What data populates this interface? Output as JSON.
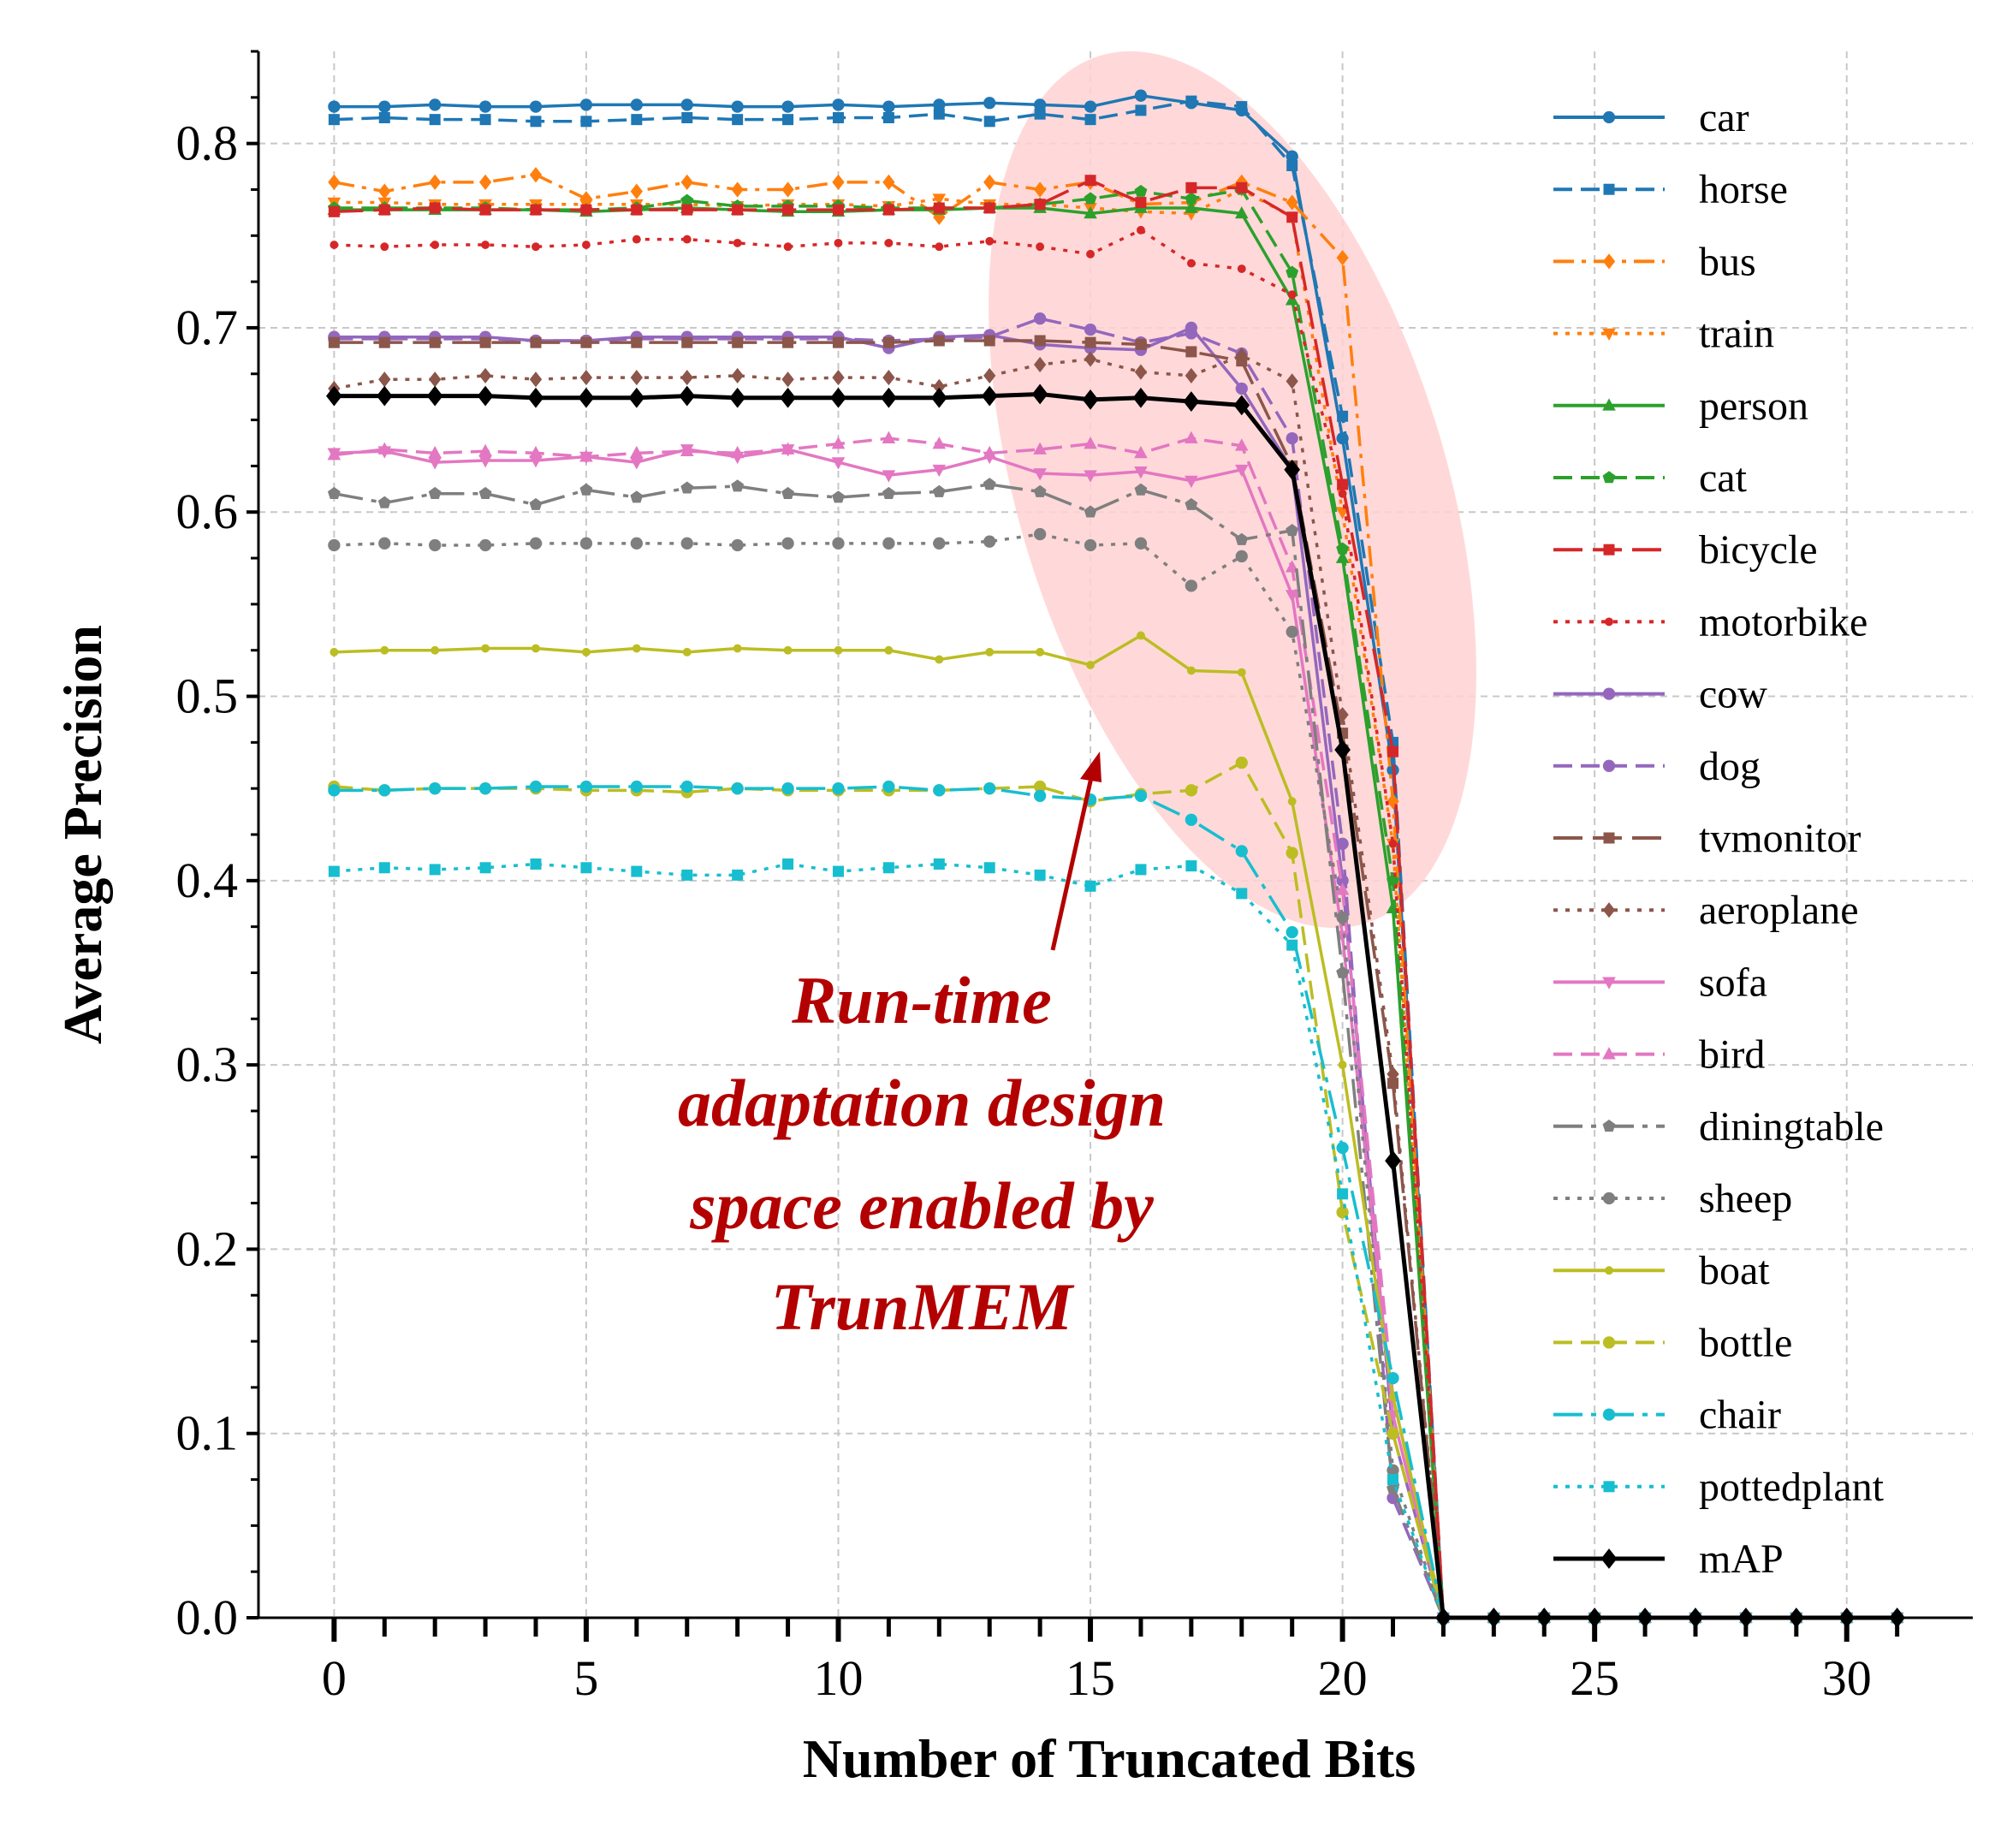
{
  "chart_data": {
    "type": "line",
    "title": "",
    "xlabel": "Number of Truncated Bits",
    "ylabel": "Average Precision",
    "xlim": [
      -1.5,
      32.5
    ],
    "ylim": [
      0.0,
      0.85
    ],
    "xticks": [
      0,
      5,
      10,
      15,
      20,
      25,
      30
    ],
    "xtick_labels": [
      "0",
      "5",
      "10",
      "15",
      "20",
      "25",
      "30"
    ],
    "yticks": [
      0.0,
      0.1,
      0.2,
      0.3,
      0.4,
      0.5,
      0.6,
      0.7,
      0.8
    ],
    "ytick_labels": [
      "0.0",
      "0.1",
      "0.2",
      "0.3",
      "0.4",
      "0.5",
      "0.6",
      "0.7",
      "0.8"
    ],
    "grid": true,
    "legend_position": "right",
    "annotation": {
      "lines": [
        "Run-time",
        "adaptation design",
        "space enabled by",
        "TrunMEM"
      ],
      "color": "#b30000",
      "highlight_color": "#ffd2d2"
    },
    "series": [
      {
        "name": "car",
        "color": "#1f77b4",
        "dash": "solid",
        "marker": "circle",
        "values": [
          0.82,
          0.82,
          0.821,
          0.82,
          0.82,
          0.821,
          0.821,
          0.821,
          0.82,
          0.82,
          0.821,
          0.82,
          0.821,
          0.822,
          0.821,
          0.82,
          0.826,
          0.822,
          0.818,
          0.793,
          0.64,
          0.46,
          0,
          0,
          0,
          0,
          0,
          0,
          0,
          0,
          0,
          0
        ]
      },
      {
        "name": "horse",
        "color": "#1f77b4",
        "dash": "dash",
        "marker": "square",
        "values": [
          0.813,
          0.814,
          0.813,
          0.813,
          0.812,
          0.812,
          0.813,
          0.814,
          0.813,
          0.813,
          0.814,
          0.814,
          0.816,
          0.812,
          0.816,
          0.813,
          0.818,
          0.823,
          0.82,
          0.788,
          0.652,
          0.475,
          0,
          0,
          0,
          0,
          0,
          0,
          0,
          0,
          0,
          0
        ]
      },
      {
        "name": "bus",
        "color": "#ff7f0e",
        "dash": "dashdot",
        "marker": "diamond",
        "values": [
          0.779,
          0.774,
          0.779,
          0.779,
          0.783,
          0.77,
          0.774,
          0.779,
          0.775,
          0.775,
          0.779,
          0.779,
          0.76,
          0.779,
          0.775,
          0.779,
          0.767,
          0.768,
          0.779,
          0.768,
          0.738,
          0.443,
          0,
          0,
          0,
          0,
          0,
          0,
          0,
          0,
          0,
          0
        ]
      },
      {
        "name": "train",
        "color": "#ff7f0e",
        "dash": "dot",
        "marker": "triangle-down",
        "values": [
          0.768,
          0.768,
          0.767,
          0.767,
          0.767,
          0.767,
          0.767,
          0.767,
          0.766,
          0.767,
          0.767,
          0.766,
          0.77,
          0.767,
          0.767,
          0.765,
          0.763,
          0.762,
          0.775,
          0.76,
          0.6,
          0.42,
          0,
          0,
          0,
          0,
          0,
          0,
          0,
          0,
          0,
          0
        ]
      },
      {
        "name": "person",
        "color": "#2ca02c",
        "dash": "solid",
        "marker": "triangle-up",
        "values": [
          0.764,
          0.764,
          0.764,
          0.764,
          0.764,
          0.763,
          0.764,
          0.765,
          0.764,
          0.763,
          0.763,
          0.764,
          0.764,
          0.765,
          0.765,
          0.762,
          0.765,
          0.765,
          0.762,
          0.715,
          0.575,
          0.385,
          0,
          0,
          0,
          0,
          0,
          0,
          0,
          0,
          0,
          0
        ]
      },
      {
        "name": "cat",
        "color": "#2ca02c",
        "dash": "dash",
        "marker": "pentagon",
        "values": [
          0.765,
          0.765,
          0.765,
          0.765,
          0.764,
          0.764,
          0.765,
          0.769,
          0.766,
          0.766,
          0.766,
          0.765,
          0.765,
          0.765,
          0.767,
          0.77,
          0.774,
          0.77,
          0.775,
          0.73,
          0.58,
          0.4,
          0,
          0,
          0,
          0,
          0,
          0,
          0,
          0,
          0,
          0
        ]
      },
      {
        "name": "bicycle",
        "color": "#d62728",
        "dash": "longdash",
        "marker": "square",
        "values": [
          0.763,
          0.764,
          0.765,
          0.764,
          0.764,
          0.764,
          0.764,
          0.764,
          0.764,
          0.764,
          0.764,
          0.764,
          0.765,
          0.765,
          0.767,
          0.78,
          0.768,
          0.776,
          0.776,
          0.76,
          0.615,
          0.47,
          0,
          0,
          0,
          0,
          0,
          0,
          0,
          0,
          0,
          0
        ]
      },
      {
        "name": "motorbike",
        "color": "#d62728",
        "dash": "dot",
        "marker": "dot",
        "values": [
          0.745,
          0.744,
          0.745,
          0.745,
          0.744,
          0.745,
          0.748,
          0.748,
          0.746,
          0.744,
          0.746,
          0.746,
          0.744,
          0.747,
          0.744,
          0.74,
          0.753,
          0.735,
          0.732,
          0.718,
          0.61,
          0.42,
          0,
          0,
          0,
          0,
          0,
          0,
          0,
          0,
          0,
          0
        ]
      },
      {
        "name": "cow",
        "color": "#9467bd",
        "dash": "solid",
        "marker": "circle",
        "values": [
          0.695,
          0.695,
          0.695,
          0.695,
          0.693,
          0.693,
          0.695,
          0.695,
          0.695,
          0.695,
          0.695,
          0.689,
          0.695,
          0.696,
          0.691,
          0.689,
          0.688,
          0.7,
          0.667,
          0.623,
          0.4,
          0.1,
          0,
          0,
          0,
          0,
          0,
          0,
          0,
          0,
          0,
          0
        ]
      },
      {
        "name": "dog",
        "color": "#9467bd",
        "dash": "dash",
        "marker": "circle",
        "values": [
          0.694,
          0.694,
          0.694,
          0.694,
          0.693,
          0.693,
          0.694,
          0.694,
          0.694,
          0.694,
          0.694,
          0.693,
          0.694,
          0.695,
          0.705,
          0.699,
          0.692,
          0.697,
          0.686,
          0.64,
          0.42,
          0.065,
          0,
          0,
          0,
          0,
          0,
          0,
          0,
          0,
          0,
          0
        ]
      },
      {
        "name": "tvmonitor",
        "color": "#8c564b",
        "dash": "longdash",
        "marker": "square",
        "values": [
          0.692,
          0.692,
          0.692,
          0.692,
          0.692,
          0.692,
          0.692,
          0.692,
          0.692,
          0.692,
          0.692,
          0.692,
          0.693,
          0.693,
          0.693,
          0.692,
          0.691,
          0.687,
          0.682,
          0.625,
          0.48,
          0.29,
          0,
          0,
          0,
          0,
          0,
          0,
          0,
          0,
          0,
          0
        ]
      },
      {
        "name": "aeroplane",
        "color": "#8c564b",
        "dash": "dot",
        "marker": "diamond",
        "values": [
          0.667,
          0.672,
          0.672,
          0.674,
          0.672,
          0.673,
          0.673,
          0.673,
          0.674,
          0.672,
          0.673,
          0.673,
          0.668,
          0.674,
          0.68,
          0.683,
          0.676,
          0.674,
          0.685,
          0.671,
          0.49,
          0.295,
          0,
          0,
          0,
          0,
          0,
          0,
          0,
          0,
          0,
          0
        ]
      },
      {
        "name": "sofa",
        "color": "#e377c2",
        "dash": "solid",
        "marker": "triangle-down",
        "values": [
          0.632,
          0.633,
          0.627,
          0.628,
          0.628,
          0.63,
          0.627,
          0.634,
          0.63,
          0.634,
          0.627,
          0.62,
          0.623,
          0.63,
          0.621,
          0.62,
          0.622,
          0.617,
          0.623,
          0.555,
          0.37,
          0.11,
          0,
          0,
          0,
          0,
          0,
          0,
          0,
          0,
          0,
          0
        ]
      },
      {
        "name": "bird",
        "color": "#e377c2",
        "dash": "dash",
        "marker": "triangle-up",
        "values": [
          0.631,
          0.634,
          0.632,
          0.633,
          0.632,
          0.63,
          0.632,
          0.633,
          0.632,
          0.634,
          0.637,
          0.64,
          0.637,
          0.632,
          0.634,
          0.637,
          0.632,
          0.64,
          0.636,
          0.57,
          0.395,
          0.12,
          0,
          0,
          0,
          0,
          0,
          0,
          0,
          0,
          0,
          0
        ]
      },
      {
        "name": "diningtable",
        "color": "#7f7f7f",
        "dash": "longdashdot",
        "marker": "pentagon",
        "values": [
          0.61,
          0.605,
          0.61,
          0.61,
          0.604,
          0.612,
          0.608,
          0.613,
          0.614,
          0.61,
          0.608,
          0.61,
          0.611,
          0.615,
          0.611,
          0.6,
          0.612,
          0.604,
          0.585,
          0.59,
          0.35,
          0.07,
          0,
          0,
          0,
          0,
          0,
          0,
          0,
          0,
          0,
          0
        ]
      },
      {
        "name": "sheep",
        "color": "#7f7f7f",
        "dash": "dot",
        "marker": "circle",
        "values": [
          0.582,
          0.583,
          0.582,
          0.582,
          0.583,
          0.583,
          0.583,
          0.583,
          0.582,
          0.583,
          0.583,
          0.583,
          0.583,
          0.584,
          0.588,
          0.582,
          0.583,
          0.56,
          0.576,
          0.535,
          0.38,
          0.08,
          0,
          0,
          0,
          0,
          0,
          0,
          0,
          0,
          0,
          0
        ]
      },
      {
        "name": "boat",
        "color": "#bcbd22",
        "dash": "solid",
        "marker": "dot",
        "values": [
          0.524,
          0.525,
          0.525,
          0.526,
          0.526,
          0.524,
          0.526,
          0.524,
          0.526,
          0.525,
          0.525,
          0.525,
          0.52,
          0.524,
          0.524,
          0.517,
          0.533,
          0.514,
          0.513,
          0.443,
          0.3,
          0.12,
          0,
          0,
          0,
          0,
          0,
          0,
          0,
          0,
          0,
          0
        ]
      },
      {
        "name": "bottle",
        "color": "#bcbd22",
        "dash": "dash",
        "marker": "circle",
        "values": [
          0.451,
          0.449,
          0.45,
          0.45,
          0.45,
          0.449,
          0.449,
          0.448,
          0.45,
          0.449,
          0.449,
          0.449,
          0.449,
          0.45,
          0.451,
          0.443,
          0.447,
          0.449,
          0.464,
          0.415,
          0.22,
          0.1,
          0,
          0,
          0,
          0,
          0,
          0,
          0,
          0,
          0,
          0
        ]
      },
      {
        "name": "chair",
        "color": "#17becf",
        "dash": "longdashdot",
        "marker": "circle",
        "values": [
          0.449,
          0.449,
          0.45,
          0.45,
          0.451,
          0.451,
          0.451,
          0.451,
          0.45,
          0.45,
          0.45,
          0.451,
          0.449,
          0.45,
          0.446,
          0.444,
          0.446,
          0.433,
          0.416,
          0.372,
          0.255,
          0.13,
          0,
          0,
          0,
          0,
          0,
          0,
          0,
          0,
          0,
          0
        ]
      },
      {
        "name": "pottedplant",
        "color": "#17becf",
        "dash": "dot",
        "marker": "square",
        "values": [
          0.405,
          0.407,
          0.406,
          0.407,
          0.409,
          0.407,
          0.405,
          0.403,
          0.403,
          0.409,
          0.405,
          0.407,
          0.409,
          0.407,
          0.403,
          0.397,
          0.406,
          0.408,
          0.393,
          0.365,
          0.23,
          0.075,
          0,
          0,
          0,
          0,
          0,
          0,
          0,
          0,
          0,
          0
        ]
      },
      {
        "name": "mAP",
        "color": "#000000",
        "dash": "solid",
        "marker": "diamond",
        "bold": true,
        "values": [
          0.663,
          0.663,
          0.663,
          0.663,
          0.662,
          0.662,
          0.662,
          0.663,
          0.662,
          0.662,
          0.662,
          0.662,
          0.662,
          0.663,
          0.664,
          0.661,
          0.662,
          0.66,
          0.658,
          0.623,
          0.471,
          0.248,
          0,
          0,
          0,
          0,
          0,
          0,
          0,
          0,
          0,
          0
        ]
      }
    ]
  }
}
